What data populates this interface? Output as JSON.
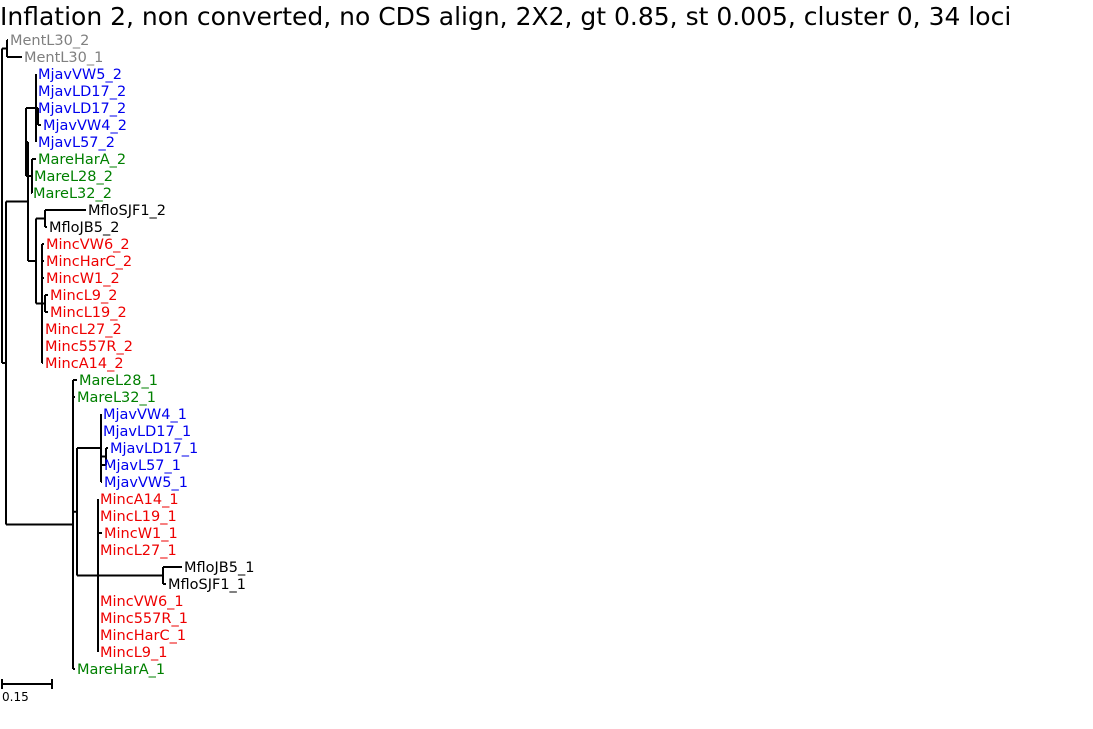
{
  "title": "Inflation 2, non converted, no CDS align, 2X2, gt 0.85, st 0.005, cluster 0, 34 loci",
  "colors": {
    "gray": "#808080",
    "blue": "#0000ee",
    "green": "#008000",
    "black": "#000000",
    "red": "#ee0000"
  },
  "leaves": [
    {
      "label": "MentL30_2",
      "color": "gray"
    },
    {
      "label": "MentL30_1",
      "color": "gray"
    },
    {
      "label": "MjavVW5_2",
      "color": "blue"
    },
    {
      "label": "MjavLD17_2",
      "color": "blue"
    },
    {
      "label": "MjavLD17_2",
      "color": "blue"
    },
    {
      "label": "MjavVW4_2",
      "color": "blue"
    },
    {
      "label": "MjavL57_2",
      "color": "blue"
    },
    {
      "label": "MareHarA_2",
      "color": "green"
    },
    {
      "label": "MareL28_2",
      "color": "green"
    },
    {
      "label": "MareL32_2",
      "color": "green"
    },
    {
      "label": "MfloSJF1_2",
      "color": "black"
    },
    {
      "label": "MfloJB5_2",
      "color": "black"
    },
    {
      "label": "MincVW6_2",
      "color": "red"
    },
    {
      "label": "MincHarC_2",
      "color": "red"
    },
    {
      "label": "MincW1_2",
      "color": "red"
    },
    {
      "label": "MincL9_2",
      "color": "red"
    },
    {
      "label": "MincL19_2",
      "color": "red"
    },
    {
      "label": "MincL27_2",
      "color": "red"
    },
    {
      "label": "Minc557R_2",
      "color": "red"
    },
    {
      "label": "MincA14_2",
      "color": "red"
    },
    {
      "label": "MareL28_1",
      "color": "green"
    },
    {
      "label": "MareL32_1",
      "color": "green"
    },
    {
      "label": "MjavVW4_1",
      "color": "blue"
    },
    {
      "label": "MjavLD17_1",
      "color": "blue"
    },
    {
      "label": "MjavLD17_1",
      "color": "blue"
    },
    {
      "label": "MjavL57_1",
      "color": "blue"
    },
    {
      "label": "MjavVW5_1",
      "color": "blue"
    },
    {
      "label": "MincA14_1",
      "color": "red"
    },
    {
      "label": "MincL19_1",
      "color": "red"
    },
    {
      "label": "MincW1_1",
      "color": "red"
    },
    {
      "label": "MincL27_1",
      "color": "red"
    },
    {
      "label": "MfloJB5_1",
      "color": "black"
    },
    {
      "label": "MfloSJF1_1",
      "color": "black"
    },
    {
      "label": "MincVW6_1",
      "color": "red"
    },
    {
      "label": "Minc557R_1",
      "color": "red"
    },
    {
      "label": "MincHarC_1",
      "color": "red"
    },
    {
      "label": "MincL9_1",
      "color": "red"
    },
    {
      "label": "MareHarA_1",
      "color": "green"
    }
  ],
  "scale_bar": {
    "label": "0.15"
  }
}
